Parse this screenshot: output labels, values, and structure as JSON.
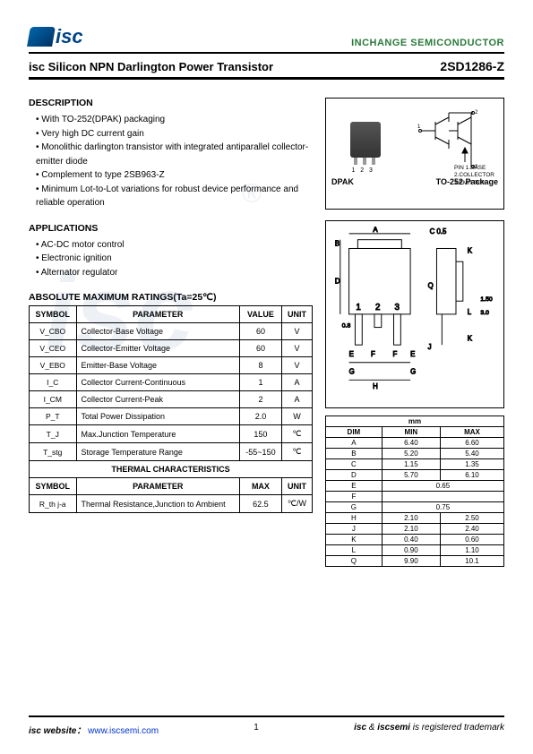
{
  "header": {
    "logo_text": "isc",
    "company": "INCHANGE SEMICONDUCTOR",
    "title": "isc Silicon NPN Darlington Power Transistor",
    "part_number": "2SD1286-Z"
  },
  "description": {
    "heading": "DESCRIPTION",
    "items": [
      "With TO-252(DPAK) packaging",
      "Very high DC current gain",
      "Monolithic darlington transistor with integrated antiparallel collector-emitter diode",
      "Complement to type 2SB963-Z",
      "Minimum Lot-to-Lot variations for robust device performance and reliable operation"
    ]
  },
  "applications": {
    "heading": "APPLICATIONS",
    "items": [
      "AC-DC motor control",
      "Electronic ignition",
      "Alternator regulator"
    ]
  },
  "ratings": {
    "heading": "ABSOLUTE MAXIMUM RATINGS(Ta=25℃)",
    "columns": [
      "SYMBOL",
      "PARAMETER",
      "VALUE",
      "UNIT"
    ],
    "rows": [
      {
        "sym": "V_CBO",
        "param": "Collector-Base Voltage",
        "val": "60",
        "unit": "V"
      },
      {
        "sym": "V_CEO",
        "param": "Collector-Emitter Voltage",
        "val": "60",
        "unit": "V"
      },
      {
        "sym": "V_EBO",
        "param": "Emitter-Base Voltage",
        "val": "8",
        "unit": "V"
      },
      {
        "sym": "I_C",
        "param": "Collector Current-Continuous",
        "val": "1",
        "unit": "A"
      },
      {
        "sym": "I_CM",
        "param": "Collector Current-Peak",
        "val": "2",
        "unit": "A"
      },
      {
        "sym": "P_T",
        "param": "Total Power Dissipation",
        "val": "2.0",
        "unit": "W"
      },
      {
        "sym": "T_J",
        "param": "Max.Junction Temperature",
        "val": "150",
        "unit": "℃"
      },
      {
        "sym": "T_stg",
        "param": "Storage Temperature Range",
        "val": "-55~150",
        "unit": "℃"
      }
    ]
  },
  "thermal": {
    "heading": "THERMAL CHARACTERISTICS",
    "columns": [
      "SYMBOL",
      "PARAMETER",
      "MAX",
      "UNIT"
    ],
    "rows": [
      {
        "sym": "R_th j-a",
        "param": "Thermal Resistance,Junction to Ambient",
        "val": "62.5",
        "unit": "℃/W"
      }
    ]
  },
  "package": {
    "dpak_label": "DPAK",
    "pins": [
      "PIN 1.BASE",
      "2.COLLECTOR",
      "3.EMITTER"
    ],
    "name": "TO-252 Package",
    "lead_nums": [
      "1",
      "2",
      "3"
    ],
    "circ_nums": [
      "1",
      "2",
      "3"
    ]
  },
  "outline": {
    "labels": [
      "A",
      "B",
      "C",
      "D",
      "E",
      "F",
      "G",
      "H",
      "J",
      "K",
      "L",
      "Q"
    ],
    "c_tol": "C 0.5",
    "side_dims": [
      "1.50",
      "3.0",
      "0.8"
    ]
  },
  "dimensions": {
    "header_unit": "mm",
    "columns": [
      "DIM",
      "MIN",
      "MAX"
    ],
    "rows": [
      [
        "A",
        "6.40",
        "6.60"
      ],
      [
        "B",
        "5.20",
        "5.40"
      ],
      [
        "C",
        "1.15",
        "1.35"
      ],
      [
        "D",
        "5.70",
        "6.10"
      ],
      [
        "E",
        "0.65",
        ""
      ],
      [
        "F",
        "",
        ""
      ],
      [
        "G",
        "0.75",
        ""
      ],
      [
        "H",
        "2.10",
        "2.50"
      ],
      [
        "J",
        "2.10",
        "2.40"
      ],
      [
        "K",
        "0.40",
        "0.60"
      ],
      [
        "L",
        "0.90",
        "1.10"
      ],
      [
        "Q",
        "9.90",
        "10.1"
      ]
    ]
  },
  "footer": {
    "site_label": "isc website：",
    "site_url": "www.iscsemi.com",
    "page_num": "1",
    "trademark": "isc & iscsemi is registered trademark"
  }
}
